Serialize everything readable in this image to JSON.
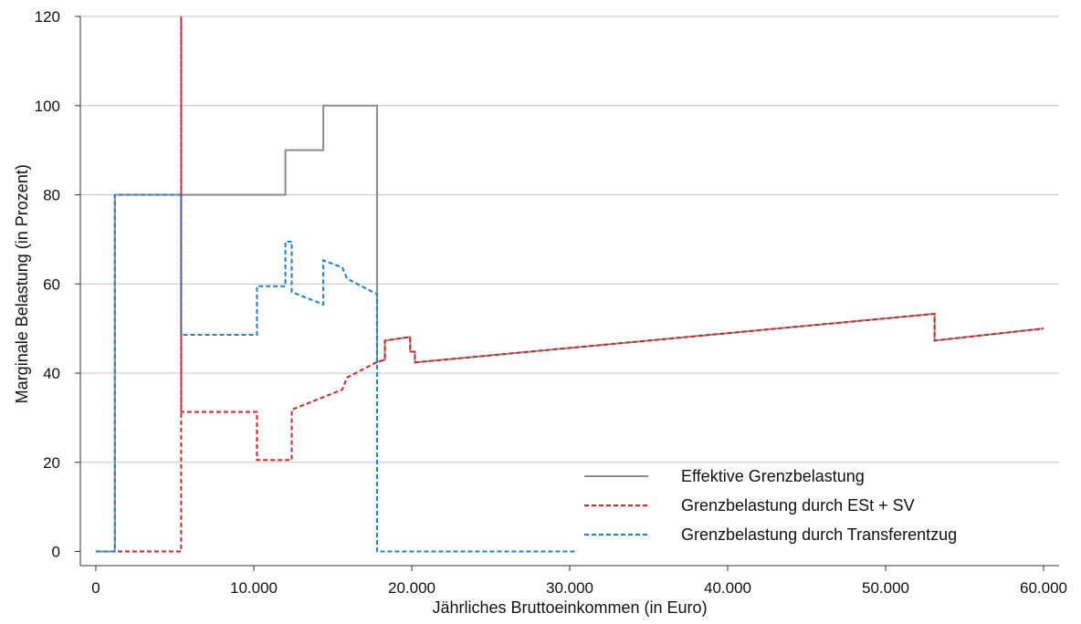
{
  "chart_data": {
    "type": "line",
    "title": "",
    "xlabel": "Jährliches Bruttoeinkommen (in Euro)",
    "ylabel": "Marginale Belastung (in Prozent)",
    "xlim": [
      0,
      60000
    ],
    "ylim": [
      0,
      120
    ],
    "x_ticks": [
      0,
      10000,
      20000,
      30000,
      40000,
      50000,
      60000
    ],
    "x_tick_labels": [
      "0",
      "10.000",
      "20.000",
      "30.000",
      "40.000",
      "50.000",
      "60.000"
    ],
    "y_ticks": [
      0,
      20,
      40,
      60,
      80,
      100,
      120
    ],
    "y_tick_labels": [
      "0",
      "20",
      "40",
      "60",
      "80",
      "100",
      "120"
    ],
    "grid": "horizontal",
    "legend_position": "bottom-right",
    "series": [
      {
        "name": "Effektive Grenzbelastung",
        "color": "#8c8c8c",
        "style": "solid",
        "points": [
          [
            0,
            0
          ],
          [
            1200,
            0
          ],
          [
            1200,
            80
          ],
          [
            5400,
            80
          ],
          [
            12000,
            80
          ],
          [
            12000,
            90
          ],
          [
            14400,
            90
          ],
          [
            14400,
            100
          ],
          [
            17800,
            100
          ],
          [
            17800,
            42.5
          ],
          [
            18300,
            43
          ],
          [
            18300,
            47.3
          ],
          [
            19900,
            48.1
          ],
          [
            19900,
            44.8
          ],
          [
            20200,
            44.8
          ],
          [
            20200,
            42.4
          ],
          [
            53100,
            53.3
          ],
          [
            53100,
            47.3
          ],
          [
            60000,
            50
          ]
        ]
      },
      {
        "name": "Grenzbelastung durch ESt + SV",
        "color": "#c62828",
        "style": "dashed",
        "points": [
          [
            0,
            0
          ],
          [
            5400,
            0
          ],
          [
            5400,
            120
          ],
          [
            5400,
            31.3
          ],
          [
            10200,
            31.3
          ],
          [
            10200,
            20.5
          ],
          [
            12400,
            20.5
          ],
          [
            12400,
            31.8
          ],
          [
            15600,
            36.3
          ],
          [
            15900,
            39
          ],
          [
            17800,
            42.5
          ],
          [
            18300,
            43
          ],
          [
            18300,
            47.3
          ],
          [
            19900,
            48.1
          ],
          [
            19900,
            44.8
          ],
          [
            20200,
            44.8
          ],
          [
            20200,
            42.4
          ],
          [
            53100,
            53.3
          ],
          [
            53100,
            47.3
          ],
          [
            60000,
            50
          ]
        ]
      },
      {
        "name": "Grenzbelastung durch Transferentzug",
        "color": "#1f7fc4",
        "style": "dashed",
        "points": [
          [
            0,
            0
          ],
          [
            1200,
            0
          ],
          [
            1200,
            80
          ],
          [
            5400,
            80
          ],
          [
            5400,
            48.6
          ],
          [
            10200,
            48.6
          ],
          [
            10200,
            59.5
          ],
          [
            12000,
            59.5
          ],
          [
            12000,
            69.5
          ],
          [
            12400,
            69.5
          ],
          [
            12400,
            58.2
          ],
          [
            14400,
            55.4
          ],
          [
            14400,
            65.3
          ],
          [
            15600,
            63.7
          ],
          [
            15900,
            61.2
          ],
          [
            17800,
            57.7
          ],
          [
            17800,
            0
          ],
          [
            30500,
            0
          ]
        ]
      }
    ]
  }
}
